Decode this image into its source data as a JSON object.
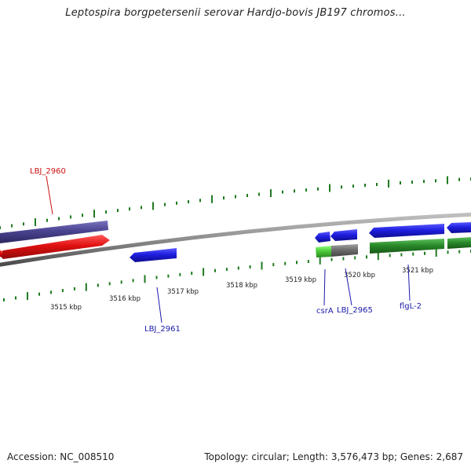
{
  "title": "Leptospira borgpetersenii serovar Hardjo-bovis JB197 chromos...",
  "footer": {
    "accession": "Accession: NC_008510",
    "topology": "Topology: circular; Length: 3,576,473 bp; Genes: 2,687"
  },
  "colors": {
    "backbone": "#8c8c8c",
    "tick": "#1f7a1f",
    "gene_blue": "#1f1fe0",
    "gene_red": "#e01010",
    "gene_purple": "#4a4490",
    "gene_green": "#2a8a2a",
    "gene_gray": "#6e6e6e",
    "gene_lightgreen": "#4ecb3a",
    "label_blue": "#1a1aa8",
    "label_red": "#cc1111"
  },
  "kbp_labels": [
    "3515 kbp",
    "3516 kbp",
    "3517 kbp",
    "3518 kbp",
    "3519 kbp",
    "3520 kbp",
    "3521 kbp"
  ],
  "gene_labels": [
    {
      "name": "LBJ_2960",
      "color": "red"
    },
    {
      "name": "LBJ_2961",
      "color": "blue"
    },
    {
      "name": "csrA",
      "color": "blue"
    },
    {
      "name": "LBJ_2965",
      "color": "blue"
    },
    {
      "name": "flgL-2",
      "color": "blue"
    }
  ]
}
